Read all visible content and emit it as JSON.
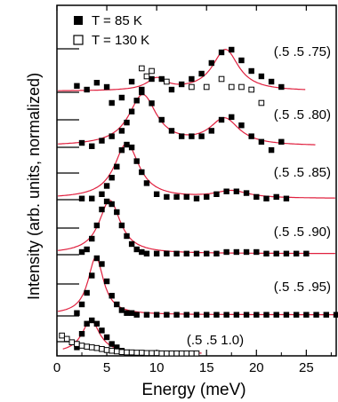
{
  "chart_data": {
    "type": "scatter",
    "xlabel": "Energy  (meV)",
    "ylabel": "Intensity  (arb. units, normalized)",
    "xlim": [
      0,
      28
    ],
    "x_ticks": [
      0,
      5,
      10,
      15,
      20,
      25
    ],
    "grid": false,
    "legend": {
      "placement": "top-left",
      "entries": [
        {
          "label": "T =   85 K",
          "marker": "filled-square"
        },
        {
          "label": "T = 130 K",
          "marker": "open-square"
        }
      ]
    },
    "fit_color": "#e0203f",
    "panels": [
      {
        "label": "(.5 .5 .75)",
        "series_85K": {
          "x": [
            2.0,
            3.0,
            4.0,
            5.0,
            5.5,
            6.5,
            7.5,
            8.5,
            9.5,
            10.5,
            11.5,
            12.5,
            13.5,
            14.5,
            15.5,
            16.5,
            17.5,
            18.5,
            19.5,
            20.5,
            21.5,
            22.5
          ],
          "y": [
            0.12,
            0.05,
            0.18,
            0.1,
            -0.2,
            -0.1,
            0.2,
            0.05,
            0.25,
            0.25,
            0.05,
            0.15,
            0.25,
            0.35,
            0.55,
            0.75,
            0.8,
            0.6,
            0.4,
            0.3,
            0.2,
            0.1
          ]
        },
        "series_130K": {
          "x": [
            8.5,
            9.0,
            9.5,
            11.0,
            13.5,
            15.0,
            16.5,
            17.5,
            18.5,
            19.5,
            20.5
          ],
          "y": [
            0.45,
            0.3,
            0.4,
            0.2,
            0.1,
            0.1,
            0.25,
            0.1,
            0.1,
            0.05,
            -0.2
          ]
        },
        "fit": {
          "peaks": [
            {
              "center": 10.0,
              "amp": 0.22,
              "width": 1.2
            },
            {
              "center": 16.9,
              "amp": 0.78,
              "width": 1.6
            }
          ],
          "baseline": 0.02
        }
      },
      {
        "label": "(.5 .5 .80)",
        "series_85K": {
          "x": [
            2.5,
            3.5,
            4.5,
            5.5,
            6.5,
            7.0,
            7.5,
            8.0,
            8.5,
            9.5,
            10.5,
            11.5,
            12.5,
            13.5,
            14.5,
            15.5,
            16.5,
            17.5,
            18.5,
            19.5,
            20.5,
            21.5,
            22.5
          ],
          "y": [
            0.08,
            0.02,
            0.12,
            0.2,
            0.3,
            0.45,
            0.65,
            0.85,
            1.0,
            0.8,
            0.5,
            0.3,
            0.2,
            0.2,
            0.2,
            0.3,
            0.5,
            0.55,
            0.4,
            0.2,
            0.1,
            -0.05,
            0.1
          ]
        },
        "fit": {
          "peaks": [
            {
              "center": 8.6,
              "amp": 0.92,
              "width": 1.7
            },
            {
              "center": 16.8,
              "amp": 0.48,
              "width": 1.8
            }
          ],
          "baseline": 0.02
        }
      },
      {
        "label": "(.5 .5 .85)",
        "series_85K": {
          "x": [
            2.5,
            3.5,
            4.5,
            5.0,
            5.5,
            6.0,
            6.5,
            7.0,
            7.5,
            8.0,
            8.5,
            9.0,
            10.0,
            11.0,
            12.0,
            13.0,
            14.0,
            15.0,
            16.0,
            17.0,
            18.0,
            19.0,
            20.0,
            21.0,
            22.0,
            23.0
          ],
          "y": [
            0.02,
            0.02,
            0.1,
            0.25,
            0.4,
            0.6,
            0.9,
            1.0,
            0.95,
            0.7,
            0.5,
            0.3,
            0.1,
            0.05,
            0.05,
            0.05,
            0.02,
            0.05,
            0.1,
            0.15,
            0.15,
            0.12,
            0.05,
            0.02,
            0.05,
            0.02
          ]
        },
        "fit": {
          "peaks": [
            {
              "center": 7.0,
              "amp": 1.0,
              "width": 1.5
            },
            {
              "center": 17.5,
              "amp": 0.13,
              "width": 2.0
            }
          ],
          "baseline": 0.02
        }
      },
      {
        "label": "(.5 .5 .90)",
        "series_85K": {
          "x": [
            2.5,
            3.0,
            3.5,
            4.0,
            4.5,
            5.0,
            5.5,
            6.0,
            6.5,
            7.0,
            7.5,
            8.0,
            8.5,
            9.0,
            10.0,
            11.0,
            12.0,
            13.0,
            14.0,
            15.0,
            16.0,
            17.0,
            18.0,
            19.0,
            20.0,
            21.0,
            22.0,
            23.0,
            24.0,
            25.0
          ],
          "y": [
            0.05,
            0.1,
            0.3,
            0.55,
            0.85,
            1.0,
            0.95,
            0.8,
            0.55,
            0.35,
            0.2,
            0.1,
            0.05,
            0.02,
            0.02,
            0.02,
            0.02,
            0.02,
            0.02,
            0.02,
            0.02,
            0.05,
            0.05,
            0.05,
            0.05,
            0.02,
            0.02,
            0.02,
            0.02,
            0.02
          ]
        },
        "fit": {
          "peaks": [
            {
              "center": 5.3,
              "amp": 1.0,
              "width": 1.3
            }
          ],
          "baseline": 0.02
        }
      },
      {
        "label": "(.5 .5 .95)",
        "series_85K": {
          "x": [
            2.0,
            2.5,
            3.0,
            3.5,
            4.0,
            4.5,
            5.0,
            5.5,
            6.0,
            6.5,
            7.0,
            7.5,
            8.0,
            9.0,
            10.0,
            11.0,
            12.0,
            13.0,
            14.0,
            15.0,
            16.0,
            17.0,
            18.0,
            19.0,
            20.0,
            21.0,
            22.0,
            23.0,
            24.0,
            25.0,
            26.0,
            27.0,
            28.0
          ],
          "y": [
            0.05,
            0.2,
            0.4,
            0.7,
            1.0,
            0.9,
            0.6,
            0.35,
            0.2,
            0.1,
            0.05,
            0.05,
            0.02,
            0.02,
            0.02,
            0.02,
            0.02,
            0.02,
            0.02,
            0.02,
            0.02,
            0.02,
            0.02,
            0.02,
            0.02,
            0.02,
            0.02,
            0.02,
            0.02,
            0.02,
            0.02,
            0.02,
            0.02
          ]
        },
        "fit": {
          "peaks": [
            {
              "center": 3.9,
              "amp": 1.0,
              "width": 0.95
            }
          ],
          "baseline": 0.02
        }
      },
      {
        "label": "(.5 .5 1.0)",
        "series_85K": {
          "x": [
            2.0,
            2.5,
            3.0,
            3.5,
            4.0,
            4.5,
            5.0,
            5.5,
            6.0,
            6.5,
            7.0,
            7.5,
            8.0,
            9.0,
            10.0
          ],
          "y": [
            0.2,
            0.6,
            0.9,
            1.0,
            0.9,
            0.7,
            0.5,
            0.3,
            0.2,
            0.1,
            0.05,
            0.02,
            0.02,
            0.02,
            0.02
          ]
        },
        "series_130K": {
          "x": [
            0.5,
            1.0,
            1.5,
            2.0,
            2.5,
            3.0,
            3.5,
            4.0,
            4.5,
            5.0,
            5.5,
            6.0,
            6.5,
            7.0,
            7.5,
            8.0,
            8.5,
            9.0,
            9.5,
            10.0,
            10.5,
            11.0,
            11.5,
            12.0,
            12.5,
            13.0,
            13.5,
            14.0
          ],
          "y": [
            0.55,
            0.45,
            0.35,
            0.3,
            0.25,
            0.22,
            0.2,
            0.18,
            0.15,
            0.12,
            0.1,
            0.08,
            0.06,
            0.05,
            0.05,
            0.04,
            0.04,
            0.03,
            0.03,
            0.03,
            0.02,
            0.02,
            0.02,
            0.02,
            0.02,
            0.02,
            0.02,
            0.02
          ]
        },
        "fit": {
          "peaks": [
            {
              "center": 3.4,
              "amp": 0.98,
              "width": 1.1
            }
          ],
          "baseline": 0.02
        }
      }
    ]
  }
}
